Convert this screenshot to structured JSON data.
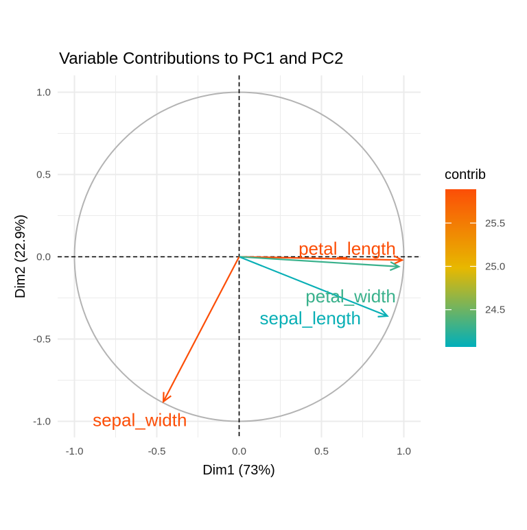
{
  "chart_data": {
    "type": "scatter",
    "subtype": "pca-variable-correlation-circle",
    "title": "Variable Contributions to PC1 and PC2",
    "xlabel": "Dim1 (73%)",
    "ylabel": "Dim2 (22.9%)",
    "xlim": [
      -1.1,
      1.1
    ],
    "ylim": [
      -1.1,
      1.1
    ],
    "x_ticks": [
      -1.0,
      -0.5,
      0.0,
      0.5,
      1.0
    ],
    "y_ticks": [
      -1.0,
      -0.5,
      0.0,
      0.5,
      1.0
    ],
    "x_tick_labels": [
      "-1.0",
      "-0.5",
      "0.0",
      "0.5",
      "1.0"
    ],
    "y_tick_labels": [
      "-1.0",
      "-0.5",
      "0.0",
      "0.5",
      "1.0"
    ],
    "grid": true,
    "unit_circle": true,
    "reference_lines": {
      "x": 0,
      "y": 0,
      "style": "dashed"
    },
    "variables": [
      {
        "name": "petal_length",
        "x": 0.99,
        "y": -0.02,
        "contrib": 25.9
      },
      {
        "name": "petal_width",
        "x": 0.97,
        "y": -0.06,
        "contrib": 24.3
      },
      {
        "name": "sepal_length",
        "x": 0.9,
        "y": -0.36,
        "contrib": 24.1
      },
      {
        "name": "sepal_width",
        "x": -0.46,
        "y": -0.88,
        "contrib": 25.9
      }
    ],
    "color_scale": {
      "title": "contrib",
      "min": 24.07,
      "max": 25.89,
      "ticks": [
        24.5,
        25.0,
        25.5
      ],
      "tick_labels": [
        "24.5",
        "25.0",
        "25.5"
      ],
      "colors": [
        "#00AFBB",
        "#E7B800",
        "#FC4E07"
      ]
    },
    "legend_position": "right"
  },
  "colors": {
    "grid": "#ebebeb",
    "circle": "#b3b3b3",
    "reference_line": "#000000",
    "low": "#00AFBB",
    "mid": "#E7B800",
    "high": "#FC4E07"
  }
}
